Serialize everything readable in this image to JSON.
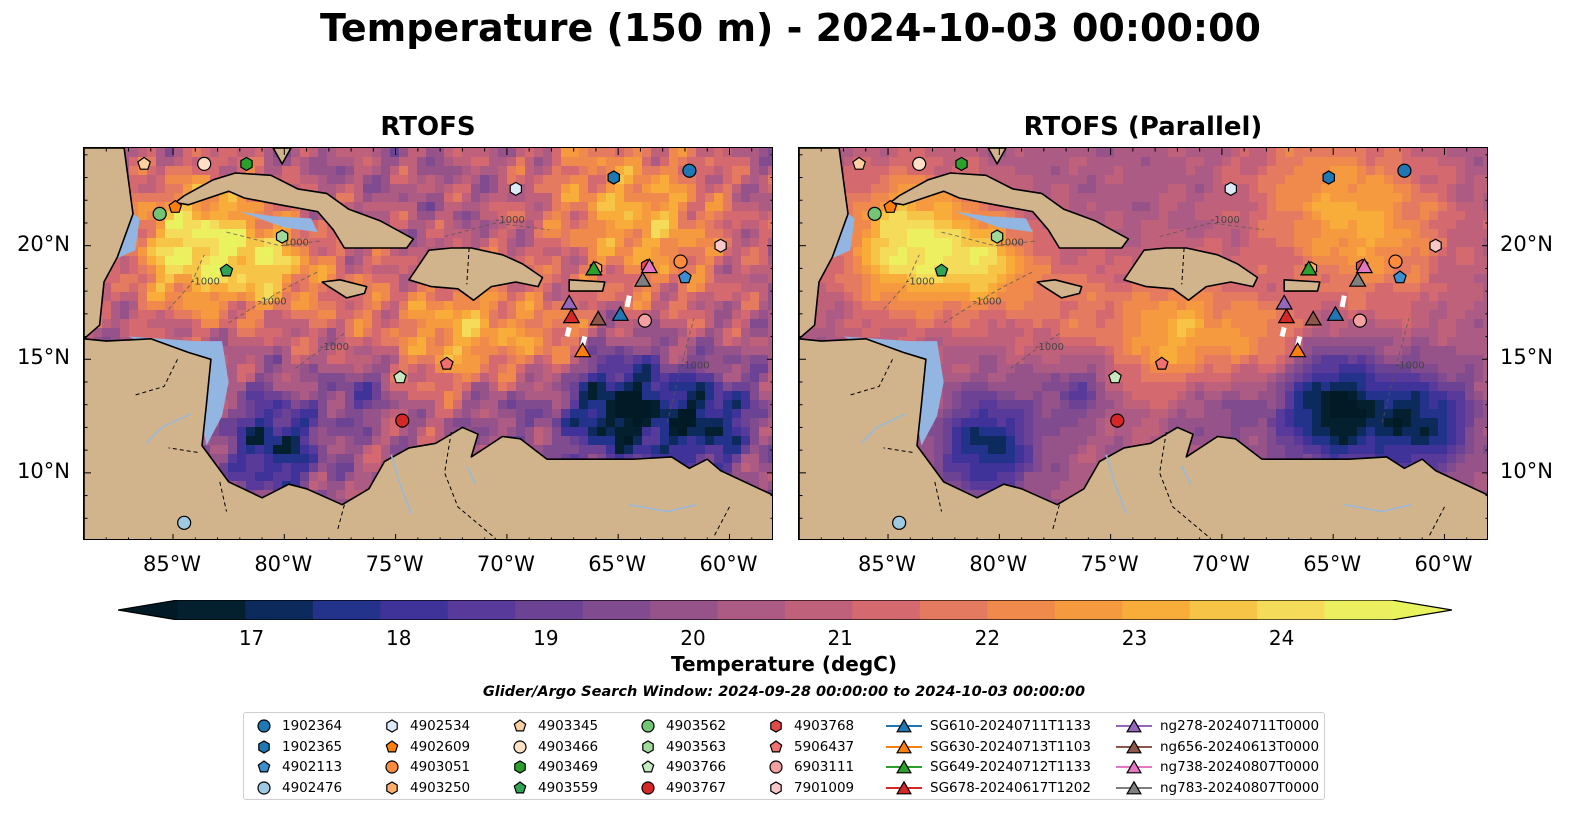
{
  "title": "Temperature (150 m) - 2024-10-03 00:00:00",
  "panels": [
    {
      "title": "RTOFS"
    },
    {
      "title": "RTOFS (Parallel)"
    }
  ],
  "axes": {
    "lon_ticks": [
      "85°W",
      "80°W",
      "75°W",
      "70°W",
      "65°W",
      "60°W"
    ],
    "lat_ticks": [
      "20°N",
      "15°N",
      "10°N"
    ],
    "lon_range": [
      -89,
      -58
    ],
    "lat_range": [
      7,
      24.3
    ]
  },
  "colorbar": {
    "label": "Temperature (degC)",
    "ticks": [
      "17",
      "18",
      "19",
      "20",
      "21",
      "22",
      "23",
      "24"
    ],
    "range": [
      16.5,
      24.75
    ],
    "colors": [
      "#04202f",
      "#0c2a5c",
      "#23328a",
      "#3f339a",
      "#583a9a",
      "#6c4394",
      "#804c8f",
      "#96538a",
      "#ab5b84",
      "#c0617c",
      "#d46a70",
      "#e47a5f",
      "#ef8a4c",
      "#f59a3e",
      "#f8ad3a",
      "#f6c446",
      "#f4dc5a",
      "#ecf060"
    ],
    "low_extend": "#021a25",
    "high_extend": "#e8f35d"
  },
  "bathymetry_label": "-1000",
  "search_window": "Glider/Argo Search Window: 2024-09-28 00:00:00 to 2024-10-03 00:00:00",
  "legend": {
    "columns": [
      [
        {
          "label": "1902364",
          "marker": "circle",
          "color": "#1f77b4"
        },
        {
          "label": "1902365",
          "marker": "hexagon",
          "color": "#1f77b4"
        },
        {
          "label": "4902113",
          "marker": "pentagon",
          "color": "#3b8fd1"
        },
        {
          "label": "4902476",
          "marker": "circle",
          "color": "#9ecae1"
        }
      ],
      [
        {
          "label": "4902534",
          "marker": "hexagon",
          "color": "#dceaf7"
        },
        {
          "label": "4902609",
          "marker": "pentagon",
          "color": "#ff7f0e"
        },
        {
          "label": "4903051",
          "marker": "circle",
          "color": "#fd8d3c"
        },
        {
          "label": "4903250",
          "marker": "hexagon",
          "color": "#fdae6b"
        }
      ],
      [
        {
          "label": "4903345",
          "marker": "pentagon",
          "color": "#fdd0a2"
        },
        {
          "label": "4903466",
          "marker": "circle",
          "color": "#fde0c5"
        },
        {
          "label": "4903469",
          "marker": "hexagon",
          "color": "#2ca02c"
        },
        {
          "label": "4903559",
          "marker": "pentagon",
          "color": "#31a354"
        }
      ],
      [
        {
          "label": "4903562",
          "marker": "circle",
          "color": "#74c476"
        },
        {
          "label": "4903563",
          "marker": "hexagon",
          "color": "#a1d99b"
        },
        {
          "label": "4903766",
          "marker": "pentagon",
          "color": "#c7e9c0"
        },
        {
          "label": "4903767",
          "marker": "circle",
          "color": "#d62728"
        }
      ],
      [
        {
          "label": "4903768",
          "marker": "hexagon",
          "color": "#e34a4a"
        },
        {
          "label": "5906437",
          "marker": "pentagon",
          "color": "#f07070"
        },
        {
          "label": "6903111",
          "marker": "circle",
          "color": "#f4a0a0"
        },
        {
          "label": "7901009",
          "marker": "hexagon",
          "color": "#f8c8c8"
        }
      ],
      [
        {
          "label": "SG610-20240711T1133",
          "marker": "triangle",
          "color": "#1f77b4"
        },
        {
          "label": "SG630-20240713T1103",
          "marker": "triangle",
          "color": "#ff7f0e"
        },
        {
          "label": "SG649-20240712T1133",
          "marker": "triangle",
          "color": "#2ca02c"
        },
        {
          "label": "SG678-20240617T1202",
          "marker": "triangle",
          "color": "#d62728"
        }
      ],
      [
        {
          "label": "ng278-20240711T0000",
          "marker": "triangle",
          "color": "#9467bd"
        },
        {
          "label": "ng656-20240613T0000",
          "marker": "triangle",
          "color": "#8c564b"
        },
        {
          "label": "ng738-20240807T0000",
          "marker": "triangle",
          "color": "#e377c2"
        },
        {
          "label": "ng783-20240807T0000",
          "marker": "triangle",
          "color": "#7f7f7f"
        }
      ]
    ]
  },
  "observations": [
    {
      "label": "1902364",
      "lon": -61.8,
      "lat": 23.3
    },
    {
      "label": "1902365",
      "lon": -65.2,
      "lat": 23.0
    },
    {
      "label": "4902113",
      "lon": -62.0,
      "lat": 18.6
    },
    {
      "label": "4902476",
      "lon": -84.5,
      "lat": 7.8
    },
    {
      "label": "4902534",
      "lon": -69.6,
      "lat": 22.5
    },
    {
      "label": "4902609",
      "lon": -84.9,
      "lat": 21.7
    },
    {
      "label": "4903051",
      "lon": -62.2,
      "lat": 19.3
    },
    {
      "label": "4903250",
      "lon": -66.0,
      "lat": 19.0
    },
    {
      "label": "4903345",
      "lon": -86.3,
      "lat": 23.6
    },
    {
      "label": "4903466",
      "lon": -83.6,
      "lat": 23.6
    },
    {
      "label": "4903469",
      "lon": -81.7,
      "lat": 23.6
    },
    {
      "label": "4903559",
      "lon": -82.6,
      "lat": 18.9
    },
    {
      "label": "4903562",
      "lon": -85.6,
      "lat": 21.4
    },
    {
      "label": "4903563",
      "lon": -80.1,
      "lat": 20.4
    },
    {
      "label": "4903766",
      "lon": -74.8,
      "lat": 14.2
    },
    {
      "label": "4903767",
      "lon": -74.7,
      "lat": 12.3
    },
    {
      "label": "4903768",
      "lon": -63.7,
      "lat": 19.1
    },
    {
      "label": "5906437",
      "lon": -72.7,
      "lat": 14.8
    },
    {
      "label": "6903111",
      "lon": -63.8,
      "lat": 16.7
    },
    {
      "label": "7901009",
      "lon": -60.4,
      "lat": 20.0
    }
  ],
  "gliders": [
    {
      "label": "SG610-20240711T1133",
      "lon": -64.9,
      "lat": 17.0
    },
    {
      "label": "SG630-20240713T1103",
      "lon": -66.6,
      "lat": 15.4
    },
    {
      "label": "SG649-20240712T1133",
      "lon": -66.1,
      "lat": 19.0
    },
    {
      "label": "SG678-20240617T1202",
      "lon": -67.1,
      "lat": 16.9
    },
    {
      "label": "ng278-20240711T0000",
      "lon": -67.2,
      "lat": 17.5
    },
    {
      "label": "ng656-20240613T0000",
      "lon": -65.9,
      "lat": 16.8
    },
    {
      "label": "ng738-20240807T0000",
      "lon": -63.6,
      "lat": 19.1
    },
    {
      "label": "ng783-20240807T0000",
      "lon": -63.9,
      "lat": 18.5
    }
  ]
}
